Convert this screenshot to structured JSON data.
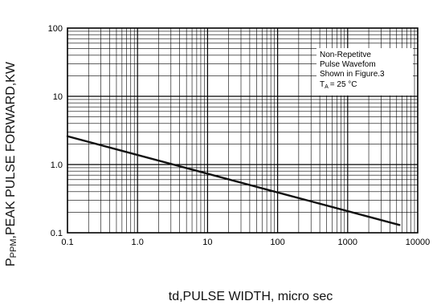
{
  "chart_data": {
    "type": "line",
    "title": "",
    "xlabel": "td,PULSE WIDTH, micro sec",
    "ylabel": "PPPM,PEAK PULSE FORWARD,KW",
    "ylabel_prefix": "P",
    "ylabel_subscript": "PPM",
    "ylabel_rest": ",PEAK PULSE FORWARD,KW",
    "x_scale": "log",
    "y_scale": "log",
    "xlim": [
      0.1,
      10000
    ],
    "ylim": [
      0.1,
      100
    ],
    "grid": true,
    "x_ticks": [
      {
        "value": 0.1,
        "label": "0.1"
      },
      {
        "value": 1,
        "label": "1.0"
      },
      {
        "value": 10,
        "label": "10"
      },
      {
        "value": 100,
        "label": "100"
      },
      {
        "value": 1000,
        "label": "1000"
      },
      {
        "value": 10000,
        "label": "10000"
      }
    ],
    "y_ticks": [
      {
        "value": 0.1,
        "label": "0.1"
      },
      {
        "value": 1,
        "label": "1.0"
      },
      {
        "value": 10,
        "label": "10"
      },
      {
        "value": 100,
        "label": "100"
      }
    ],
    "series": [
      {
        "color": "#111111",
        "x": [
          0.1,
          5500
        ],
        "y": [
          2.6,
          0.13
        ]
      }
    ],
    "annotation": {
      "lines": [
        "Non-Repetitve",
        "Pulse Wavefom",
        "Shown in Figure.3"
      ],
      "temp_prefix": "T",
      "temp_subscript": "A",
      "temp_value": "= 25 °C"
    }
  }
}
